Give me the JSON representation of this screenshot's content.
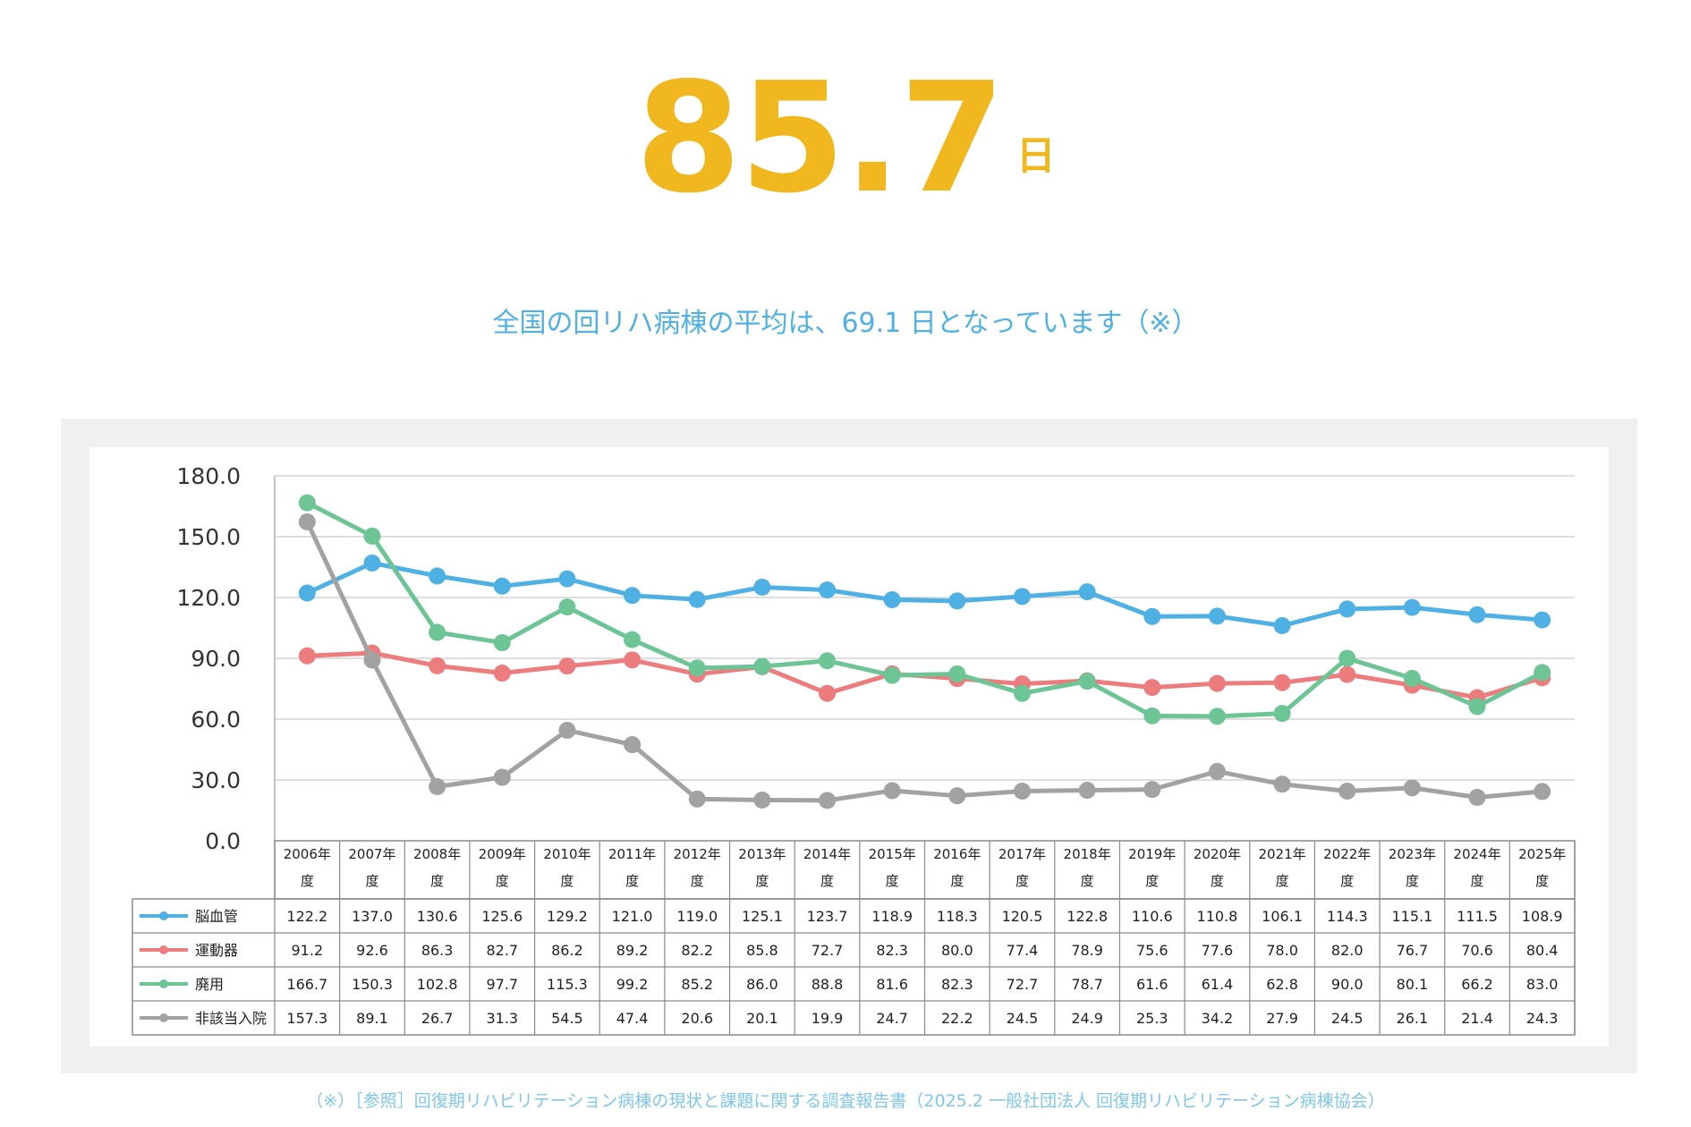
{
  "headline": {
    "value": "85.7",
    "unit": "日"
  },
  "subtitle": "全国の回リハ病棟の平均は、69.1 日となっています（※）",
  "footnote": "（※）［参照］回復期リハビリテーション病棟の現状と課題に関する調査報告書（2025.2 一般社団法人 回復期リハビリテーション病棟協会）",
  "chart_data": {
    "type": "line",
    "title": "",
    "xlabel": "",
    "ylabel": "",
    "ylim": [
      0,
      180
    ],
    "yticks": [
      "180.0",
      "150.0",
      "120.0",
      "90.0",
      "60.0",
      "30.0",
      "0.0"
    ],
    "grid": true,
    "legend": "table-left",
    "categories_top": [
      "2006年",
      "2007年",
      "2008年",
      "2009年",
      "2010年",
      "2011年",
      "2012年",
      "2013年",
      "2014年",
      "2015年",
      "2016年",
      "2017年",
      "2018年",
      "2019年",
      "2020年",
      "2021年",
      "2022年",
      "2023年",
      "2024年",
      "2025年"
    ],
    "categories_bottom": "度",
    "series": [
      {
        "name": "脳血管",
        "color": "#4fb1e3",
        "values": [
          122.2,
          137.0,
          130.6,
          125.6,
          129.2,
          121.0,
          119.0,
          125.1,
          123.7,
          118.9,
          118.3,
          120.5,
          122.8,
          110.6,
          110.8,
          106.1,
          114.3,
          115.1,
          111.5,
          108.9
        ],
        "labels": [
          "122.2",
          "137.0",
          "130.6",
          "125.6",
          "129.2",
          "121.0",
          "119.0",
          "125.1",
          "123.7",
          "118.9",
          "118.3",
          "120.5",
          "122.8",
          "110.6",
          "110.8",
          "106.1",
          "114.3",
          "115.1",
          "111.5",
          "108.9"
        ]
      },
      {
        "name": "運動器",
        "color": "#ec7c7d",
        "values": [
          91.2,
          92.6,
          86.3,
          82.7,
          86.2,
          89.2,
          82.2,
          85.8,
          72.7,
          82.3,
          80.0,
          77.4,
          78.9,
          75.6,
          77.6,
          78.0,
          82.0,
          76.7,
          70.6,
          80.4
        ],
        "labels": [
          "91.2",
          "92.6",
          "86.3",
          "82.7",
          "86.2",
          "89.2",
          "82.2",
          "85.8",
          "72.7",
          "82.3",
          "80.0",
          "77.4",
          "78.9",
          "75.6",
          "77.6",
          "78.0",
          "82.0",
          "76.7",
          "70.6",
          "80.4"
        ]
      },
      {
        "name": "廃用",
        "color": "#6dc596",
        "values": [
          166.7,
          150.3,
          102.8,
          97.7,
          115.3,
          99.2,
          85.2,
          86.0,
          88.8,
          81.6,
          82.3,
          72.7,
          78.7,
          61.6,
          61.4,
          62.8,
          90.0,
          80.1,
          66.2,
          83.0
        ],
        "labels": [
          "166.7",
          "150.3",
          "102.8",
          "97.7",
          "115.3",
          "99.2",
          "85.2",
          "86.0",
          "88.8",
          "81.6",
          "82.3",
          "72.7",
          "78.7",
          "61.6",
          "61.4",
          "62.8",
          "90.0",
          "80.1",
          "66.2",
          "83.0"
        ]
      },
      {
        "name": "非該当入院",
        "color": "#a2a2a2",
        "values": [
          157.3,
          89.1,
          26.7,
          31.3,
          54.5,
          47.4,
          20.6,
          20.1,
          19.9,
          24.7,
          22.2,
          24.5,
          24.9,
          25.3,
          34.2,
          27.9,
          24.5,
          26.1,
          21.4,
          24.3
        ],
        "labels": [
          "157.3",
          "89.1",
          "26.7",
          "31.3",
          "54.5",
          "47.4",
          "20.6",
          "20.1",
          "19.9",
          "24.7",
          "22.2",
          "24.5",
          "24.9",
          "25.3",
          "34.2",
          "27.9",
          "24.5",
          "26.1",
          "21.4",
          "24.3"
        ]
      }
    ]
  }
}
